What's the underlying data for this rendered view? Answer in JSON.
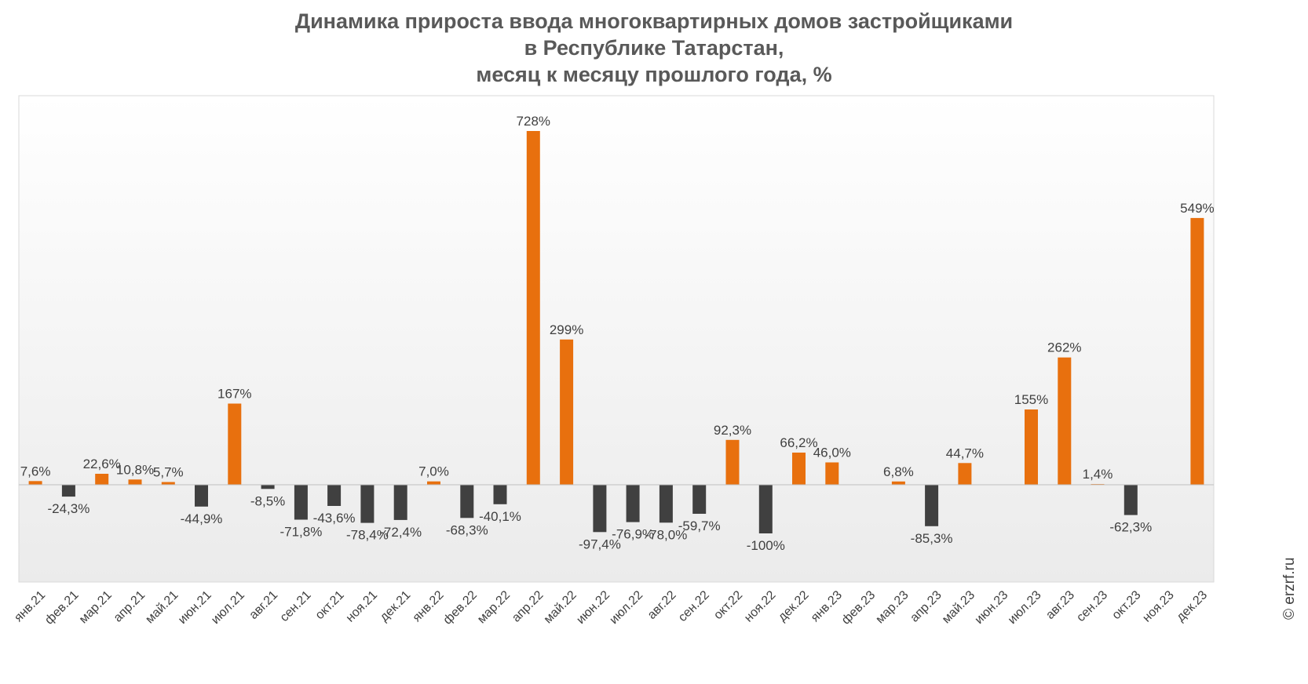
{
  "chart_data": {
    "type": "bar",
    "title_lines": [
      "Динамика прироста ввода многоквартирных домов застройщиками",
      "в Республике Татарстан,",
      "месяц к месяцу прошлого года, %"
    ],
    "categories": [
      "янв.21",
      "фев.21",
      "мар.21",
      "апр.21",
      "май.21",
      "июн.21",
      "июл.21",
      "авг.21",
      "сен.21",
      "окт.21",
      "ноя.21",
      "дек.21",
      "янв.22",
      "фев.22",
      "мар.22",
      "апр.22",
      "май.22",
      "июн.22",
      "июл.22",
      "авг.22",
      "сен.22",
      "окт.22",
      "ноя.22",
      "дек.22",
      "янв.23",
      "фев.23",
      "мар.23",
      "апр.23",
      "май.23",
      "июн.23",
      "июл.23",
      "авг.23",
      "сен.23",
      "окт.23",
      "ноя.23",
      "дек.23"
    ],
    "values": [
      7.6,
      -24.3,
      22.6,
      10.8,
      5.7,
      -44.9,
      167,
      -8.5,
      -71.8,
      -43.6,
      -78.4,
      -72.4,
      7.0,
      -68.3,
      -40.1,
      728,
      299,
      -97.4,
      -76.9,
      -78.0,
      -59.7,
      92.3,
      -100,
      66.2,
      46.0,
      null,
      6.8,
      -85.3,
      44.7,
      null,
      155,
      262,
      1.4,
      -62.3,
      null,
      549
    ],
    "labels": [
      "7,6%",
      "-24,3%",
      "22,6%",
      "10,8%",
      "5,7%",
      "-44,9%",
      "167%",
      "-8,5%",
      "-71,8%",
      "-43,6%",
      "-78,4%",
      "-72,4%",
      "7,0%",
      "-68,3%",
      "-40,1%",
      "728%",
      "299%",
      "-97,4%",
      "-76,9%",
      "-78,0%",
      "-59,7%",
      "92,3%",
      "-100%",
      "66,2%",
      "46,0%",
      "",
      "6,8%",
      "-85,3%",
      "44,7%",
      "",
      "155%",
      "262%",
      "1,4%",
      "-62,3%",
      "",
      "549%"
    ],
    "ylim": [
      -200,
      800
    ],
    "xlabel": "",
    "ylabel": "",
    "grid": false,
    "legend": "none",
    "colors": {
      "positive": "#E8700E",
      "negative": "#404040"
    }
  },
  "watermark": "© erzrf.ru"
}
